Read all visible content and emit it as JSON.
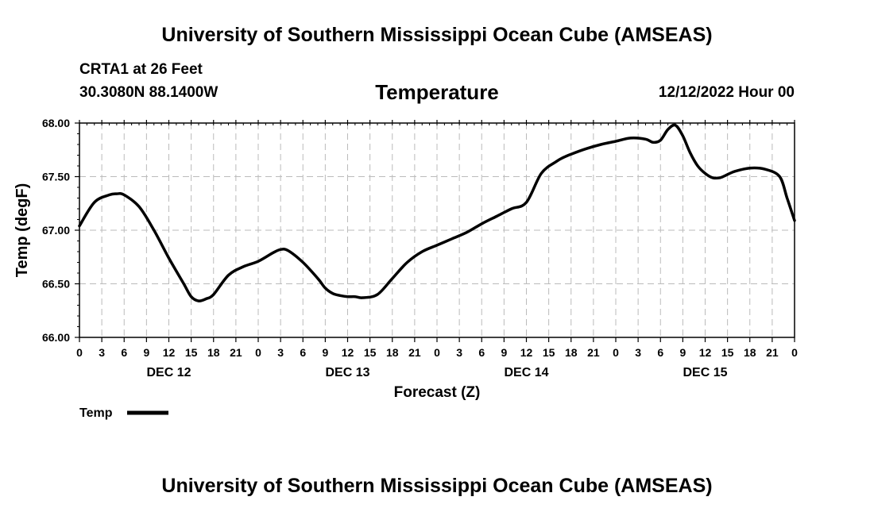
{
  "header": {
    "title": "University of Southern Mississippi Ocean Cube (AMSEAS)",
    "station": "CRTA1 at 26 Feet",
    "coords": "30.3080N  88.1400W",
    "variable": "Temperature",
    "datetime": "12/12/2022 Hour 00"
  },
  "footer": {
    "title": "University of Southern Mississippi Ocean Cube (AMSEAS)"
  },
  "chart_data": {
    "type": "line",
    "title": "Temperature",
    "xlabel": "Forecast (Z)",
    "ylabel": "Temp (degF)",
    "ylim": [
      66.0,
      68.0
    ],
    "xlim": [
      0,
      96
    ],
    "yticks": [
      "66.00",
      "66.50",
      "67.00",
      "67.50",
      "68.00"
    ],
    "xtick_labels": [
      "0",
      "3",
      "6",
      "9",
      "12",
      "15",
      "18",
      "21",
      "0",
      "3",
      "6",
      "9",
      "12",
      "15",
      "18",
      "21",
      "0",
      "3",
      "6",
      "9",
      "12",
      "15",
      "18",
      "21",
      "0",
      "3",
      "6",
      "9",
      "12",
      "15",
      "18",
      "21",
      "0"
    ],
    "day_labels": [
      {
        "label": "DEC 12",
        "hour": 12
      },
      {
        "label": "DEC 13",
        "hour": 36
      },
      {
        "label": "DEC 14",
        "hour": 60
      },
      {
        "label": "DEC 15",
        "hour": 84
      }
    ],
    "grid": true,
    "series": [
      {
        "name": "Temp",
        "color": "#000000",
        "x": [
          0,
          2,
          4,
          5,
          6,
          8,
          10,
          12,
          14,
          15,
          16,
          17,
          18,
          20,
          22,
          24,
          26,
          27,
          28,
          30,
          32,
          33,
          34,
          35,
          36,
          37,
          38,
          40,
          42,
          44,
          46,
          48,
          50,
          52,
          54,
          56,
          58,
          60,
          62,
          64,
          65,
          66,
          68,
          70,
          72,
          74,
          76,
          77,
          78,
          79,
          80,
          81,
          82,
          83,
          84,
          85,
          86,
          87,
          88,
          90,
          92,
          94,
          95,
          96
        ],
        "values": [
          67.04,
          67.26,
          67.33,
          67.34,
          67.33,
          67.22,
          67.0,
          66.74,
          66.5,
          66.38,
          66.34,
          66.36,
          66.4,
          66.58,
          66.66,
          66.71,
          66.79,
          66.82,
          66.81,
          66.7,
          66.55,
          66.46,
          66.41,
          66.39,
          66.38,
          66.38,
          66.37,
          66.4,
          66.55,
          66.7,
          66.8,
          66.86,
          66.92,
          66.98,
          67.06,
          67.13,
          67.2,
          67.26,
          67.53,
          67.64,
          67.68,
          67.71,
          67.76,
          67.8,
          67.83,
          67.86,
          67.85,
          67.82,
          67.84,
          67.94,
          67.98,
          67.88,
          67.72,
          67.6,
          67.53,
          67.49,
          67.49,
          67.52,
          67.55,
          67.58,
          67.57,
          67.5,
          67.3,
          67.09
        ]
      }
    ],
    "legend": {
      "label": "Temp",
      "placement": "bottom-left"
    }
  }
}
